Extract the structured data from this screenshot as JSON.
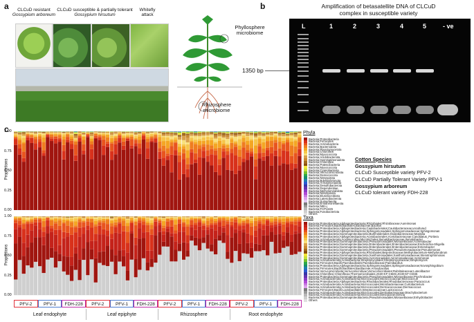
{
  "panels": {
    "a": "a",
    "b": "b",
    "c": "c"
  },
  "panel_a": {
    "resistant_title": "CLCuD resistant",
    "resistant_species": "Gossypium arboreum",
    "susceptible_title": "CLCuD susceptible & partially tolerant",
    "susceptible_species": "Gossypium hirsutum",
    "whitefly_title": "Whitefly",
    "whitefly_sub": "attack",
    "phyllosphere": "Phyllosphere\nmicrobiome",
    "rhizosphere": "Rhizosphere\nmicrobiome"
  },
  "panel_b": {
    "title_line1": "Amplification of betasatellite DNA of CLCuD",
    "title_line2": "complex in susceptible variety",
    "lanes": [
      "L",
      "1",
      "2",
      "3",
      "4",
      "5",
      "- ve"
    ],
    "bp_label": "1350 bp"
  },
  "panel_c": {
    "ylabel": "Proportions",
    "yticks": [
      "1.00",
      "0.75",
      "0.50",
      "0.25",
      "0.00"
    ],
    "phyla_title": "Phyla",
    "taxa_title": "Taxa",
    "groups": [
      "PFV-2",
      "PFV-1",
      "FDH-228",
      "PFV-2",
      "PFV-1",
      "FDH-228",
      "PFV-2",
      "PFV-1",
      "FDH-228",
      "PFV-2",
      "PFV-1",
      "FDH-228"
    ],
    "group_colors": [
      "#e0303a",
      "#4a7ad0",
      "#c02aa8"
    ],
    "compartments": [
      "Leaf endophyte",
      "Leaf epiphyte",
      "Rhizosphere",
      "Root endophyte"
    ],
    "cotton_species": {
      "heading": "Cotton Species",
      "hirsutum": "Gossypium hirsutum",
      "pfv2": "CLCuD Susceptible variety PFV-2",
      "pfv1": "CLCuD Partially Tolerant Variety PFV-1",
      "arboreum": "Gossypium arboreum",
      "fdh": "CLCuD tolerant variety FDH-228"
    },
    "phyla_legend": [
      {
        "label": "Bacteria;Proteobacteria",
        "color": "#a0150f"
      },
      {
        "label": "Bacteria;Firmicutes",
        "color": "#d8311b"
      },
      {
        "label": "Bacteria;Actinobacteria",
        "color": "#e8541e"
      },
      {
        "label": "Bacteria;Bacteroidota",
        "color": "#ef7d1f"
      },
      {
        "label": "Bacteria;Planctomycetota",
        "color": "#f4a623"
      },
      {
        "label": "Bacteria;Chloroflexi",
        "color": "#f6c64a"
      },
      {
        "label": "Bacteria;Myxococcota",
        "color": "#f9e07a"
      },
      {
        "label": "Bacteria;Acidobacteriota",
        "color": "#d9a14b"
      },
      {
        "label": "Bacteria;Gemmatimonadota",
        "color": "#c98a32"
      },
      {
        "label": "Bacteria;Chloroflexi",
        "color": "#a36b1f"
      },
      {
        "label": "Bacteria;Patescibacteria",
        "color": "#8a4f10"
      },
      {
        "label": "Bacteria;Myxococcota",
        "color": "#f2e53a"
      },
      {
        "label": "Bacteria;Cyanobacteria",
        "color": "#c9e03a"
      },
      {
        "label": "Bacteria;Verrucomicrobiota",
        "color": "#79c230"
      },
      {
        "label": "Bacteria;Deinococcota",
        "color": "#2da84a"
      },
      {
        "label": "Bacteria;Nitrospirota",
        "color": "#178f6b"
      },
      {
        "label": "Bacteria;Bdellovibrionota",
        "color": "#1f7fae"
      },
      {
        "label": "Bacteria;Armatimonadota",
        "color": "#2a5ad1"
      },
      {
        "label": "Bacteria;Desulfobacterota",
        "color": "#3636a8"
      },
      {
        "label": "Bacteria;Dependentiae",
        "color": "#6034b0"
      },
      {
        "label": "Bacteria;Methylomirabilota",
        "color": "#8a3ac4"
      },
      {
        "label": "Bacteria;Nitrospinota",
        "color": "#b04ad6"
      },
      {
        "label": "Bacteria;Elusimicrobiota",
        "color": "#c778e0"
      },
      {
        "label": "Bacteria;Latescibacterota",
        "color": "#dca0ec"
      },
      {
        "label": "Bacteria;Sumerlaeota",
        "color": "#e3c8f2"
      },
      {
        "label": "Bacteria;Entotheonellaeota",
        "color": "#7a7a7a"
      },
      {
        "label": "Bacteria;NB1-j",
        "color": "#9a9a9a"
      },
      {
        "label": "Bacteria;FCPU426",
        "color": "#b8b8b8"
      },
      {
        "label": "Bacteria;Fusobacteriota",
        "color": "#cfcfcf"
      },
      {
        "label": "Others",
        "color": "#e0e0e0"
      }
    ],
    "taxa_legend": [
      {
        "label": "Bacteria;Proteobacteria;Alphaproteobacteria;Rhizobiales;Rhizobiaceae;Aureimonas",
        "color": "#a0150f"
      },
      {
        "label": "Bacteria;Firmicutes;Bacilli;Bacillales;Bacillaceae;Bacillus",
        "color": "#c4221a"
      },
      {
        "label": "Bacteria;Proteobacteria;Alphaproteobacteria;Caulobacterales;Caulobacteraceae;uncultured",
        "color": "#d8311b"
      },
      {
        "label": "Bacteria;Proteobacteria;Alphaproteobacteria;Sphingomonadales;Sphingomonadaceae;Sphingomonas",
        "color": "#e8541e"
      },
      {
        "label": "Bacteria;Proteobacteria;Gammaproteobacteria;Burkholderiales;Oxalobacteraceae;Massilia",
        "color": "#ef7d1f"
      },
      {
        "label": "Bacteria;Proteobacteria;Alphaproteobacteria;Acetobacterales;Acetobacteraceae;Candidatus_Portiera",
        "color": "#f4a623"
      },
      {
        "label": "Bacteria;Actinobacteriota;Acidimicrobiia;Microtrichales;Ilumatobacteraceae;Ilumatobacter",
        "color": "#f6c64a"
      },
      {
        "label": "Bacteria;Proteobacteria;Gammaproteobacteria;Pseudomonadales;Moraxellaceae;Acinetobacter",
        "color": "#f9e07a"
      },
      {
        "label": "Bacteria;Proteobacteria;Gammaproteobacteria;Enterobacterales;Enterobacteriaceae;Escherichia-Shigella",
        "color": "#d9a14b"
      },
      {
        "label": "Bacteria;Proteobacteria;Gammaproteobacteria;Enterobacterales;Enterobacteriaceae;Enterobacter",
        "color": "#c98a32"
      },
      {
        "label": "Bacteria;Proteobacteria;Gammaproteobacteria;Pseudomonadales;Pseudomonadaceae;Pseudomonas",
        "color": "#a36b1f"
      },
      {
        "label": "Bacteria;Proteobacteria;Alphaproteobacteria;Rhizobiales;Beijerinckiaceae;Methylobacterium-Methylorubrum",
        "color": "#8a4f10"
      },
      {
        "label": "Bacteria;Proteobacteria;Gammaproteobacteria;Xanthomonadales;Xanthomonadaceae;Stenotrophomonas",
        "color": "#f2e53a"
      },
      {
        "label": "Bacteria;Proteobacteria;Gammaproteobacteria;Aeromonadales;Aeromonadaceae;Aeromonas",
        "color": "#c9e03a"
      },
      {
        "label": "Bacteria;Actinobacteriota;Actinobacteria;Streptomycetales;Streptomycetaceae;Streptomyces",
        "color": "#79c230"
      },
      {
        "label": "Bacteria;Firmicutes;Bacilli;Paenibacillales;Paenibacillaceae;Paenibacillus",
        "color": "#2da84a"
      },
      {
        "label": "Bacteria;Proteobacteria;Alphaproteobacteria;Sphingomonadales;Sphingomonadaceae;Novosphingobium",
        "color": "#178f6b"
      },
      {
        "label": "Bacteria;Firmicutes;Bacilli;Bacillales;Bacillaceae;Anoxybacillus",
        "color": "#1f7fae"
      },
      {
        "label": "Bacteria;Verrucomicrobiota;Verrucomicrobiae;Verrucomicrobiales;Rubritaleaceae;Luteolibacter",
        "color": "#2a5ad1"
      },
      {
        "label": "Bacteria;Chloroflexi;Chloroflexia;Thermomicrobiales;JG30-KF-CM45;JG30-KF-CM45",
        "color": "#3636a8"
      },
      {
        "label": "Bacteria;Proteobacteria;Gammaproteobacteria;Pseudomonadales;Moraxellaceae;Psychrobacter",
        "color": "#6034b0"
      },
      {
        "label": "Bacteria;Actinobacteriota;Actinobacteria;Micrococcales;Micrococcaceae;Micrococcus",
        "color": "#8a3ac4"
      },
      {
        "label": "Bacteria;Proteobacteria;Alphaproteobacteria;Rhodobacterales;Rhodobacteraceae;Paracoccus",
        "color": "#b04ad6"
      },
      {
        "label": "Bacteria;Actinobacteriota;Actinobacteria;Micrococcales;Microbacteriaceae;Curtobacterium",
        "color": "#c778e0"
      },
      {
        "label": "Bacteria;Actinobacteriota;Actinobacteria;Micrococcales;Dermacoccaceae;Dermacoccus",
        "color": "#dca0ec"
      },
      {
        "label": "Bacteria;Firmicutes;Bacilli;Lactobacillales;Streptococcaceae;Lactococcus",
        "color": "#7a7a7a"
      },
      {
        "label": "Bacteria;Actinobacteriota;Actinobacteria;Micrococcales;Dermabacteraceae;Brachybacterium",
        "color": "#9a9a9a"
      },
      {
        "label": "Bacteria;Actinobacteriota;Actinobacteria;Micrococcales;Dietziaceae;Dietzia",
        "color": "#b8b8b8"
      },
      {
        "label": "Bacteria;Proteobacteria;Gammaproteobacteria;Pseudomonadales;Moraxellaceae;Enhydrobacter",
        "color": "#cfcfcf"
      },
      {
        "label": "Others",
        "color": "#e0e0e0"
      }
    ]
  },
  "chart_data": [
    {
      "type": "bar",
      "title": "Phyla",
      "ylabel": "Proportions",
      "ylim": [
        0,
        1
      ],
      "yticks": [
        0,
        0.25,
        0.5,
        0.75,
        1.0
      ],
      "categories": [
        "Leaf endophyte PFV-2",
        "Leaf endophyte PFV-1",
        "Leaf endophyte FDH-228",
        "Leaf epiphyte PFV-2",
        "Leaf epiphyte PFV-1",
        "Leaf epiphyte FDH-228",
        "Rhizosphere PFV-2",
        "Rhizosphere PFV-1",
        "Rhizosphere FDH-228",
        "Root endophyte PFV-2",
        "Root endophyte PFV-1",
        "Root endophyte FDH-228"
      ],
      "stacked": true
    },
    {
      "type": "bar",
      "title": "Taxa",
      "ylabel": "Proportions",
      "ylim": [
        0,
        1
      ],
      "yticks": [
        0,
        0.25,
        0.5,
        0.75,
        1.0
      ],
      "categories": [
        "Leaf endophyte PFV-2",
        "Leaf endophyte PFV-1",
        "Leaf endophyte FDH-228",
        "Leaf epiphyte PFV-2",
        "Leaf epiphyte PFV-1",
        "Leaf epiphyte FDH-228",
        "Rhizosphere PFV-2",
        "Rhizosphere PFV-1",
        "Rhizosphere FDH-228",
        "Root endophyte PFV-2",
        "Root endophyte PFV-1",
        "Root endophyte FDH-228"
      ],
      "stacked": true
    }
  ]
}
